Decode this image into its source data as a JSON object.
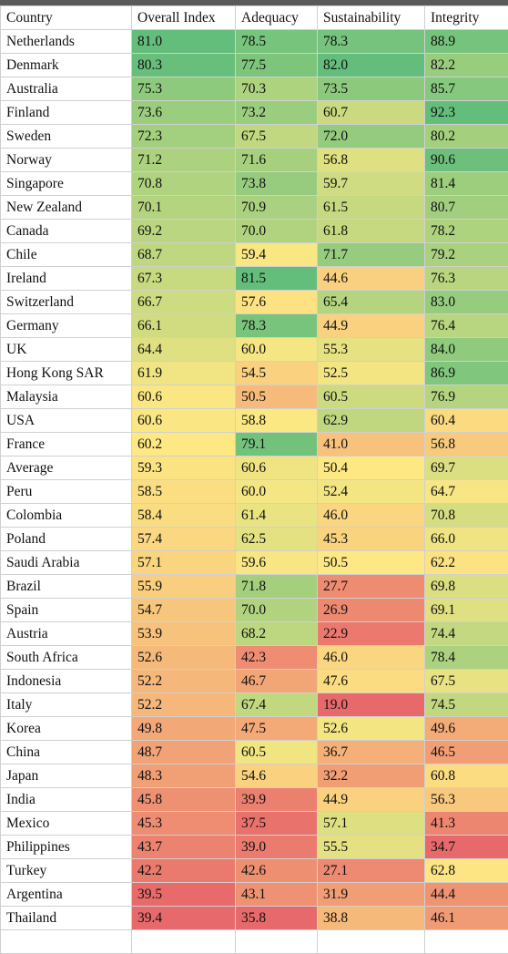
{
  "columns": [
    "Country",
    "Overall Index",
    "Adequacy",
    "Sustainability",
    "Integrity"
  ],
  "color_scale": {
    "low": "#e8696b",
    "mid": "#fde883",
    "high": "#63be7b"
  },
  "rows": [
    {
      "country": "Netherlands",
      "values": [
        81.0,
        78.5,
        78.3,
        88.9
      ]
    },
    {
      "country": "Denmark",
      "values": [
        80.3,
        77.5,
        82.0,
        82.2
      ]
    },
    {
      "country": "Australia",
      "values": [
        75.3,
        70.3,
        73.5,
        85.7
      ]
    },
    {
      "country": "Finland",
      "values": [
        73.6,
        73.2,
        60.7,
        92.3
      ]
    },
    {
      "country": "Sweden",
      "values": [
        72.3,
        67.5,
        72.0,
        80.2
      ]
    },
    {
      "country": "Norway",
      "values": [
        71.2,
        71.6,
        56.8,
        90.6
      ]
    },
    {
      "country": "Singapore",
      "values": [
        70.8,
        73.8,
        59.7,
        81.4
      ]
    },
    {
      "country": "New Zealand",
      "values": [
        70.1,
        70.9,
        61.5,
        80.7
      ]
    },
    {
      "country": "Canada",
      "values": [
        69.2,
        70.0,
        61.8,
        78.2
      ]
    },
    {
      "country": "Chile",
      "values": [
        68.7,
        59.4,
        71.7,
        79.2
      ]
    },
    {
      "country": "Ireland",
      "values": [
        67.3,
        81.5,
        44.6,
        76.3
      ]
    },
    {
      "country": "Switzerland",
      "values": [
        66.7,
        57.6,
        65.4,
        83.0
      ]
    },
    {
      "country": "Germany",
      "values": [
        66.1,
        78.3,
        44.9,
        76.4
      ]
    },
    {
      "country": "UK",
      "values": [
        64.4,
        60.0,
        55.3,
        84.0
      ]
    },
    {
      "country": "Hong Kong SAR",
      "values": [
        61.9,
        54.5,
        52.5,
        86.9
      ]
    },
    {
      "country": "Malaysia",
      "values": [
        60.6,
        50.5,
        60.5,
        76.9
      ]
    },
    {
      "country": "USA",
      "values": [
        60.6,
        58.8,
        62.9,
        60.4
      ]
    },
    {
      "country": "France",
      "values": [
        60.2,
        79.1,
        41.0,
        56.8
      ]
    },
    {
      "country": "Average",
      "values": [
        59.3,
        60.6,
        50.4,
        69.7
      ]
    },
    {
      "country": "Peru",
      "values": [
        58.5,
        60.0,
        52.4,
        64.7
      ]
    },
    {
      "country": "Colombia",
      "values": [
        58.4,
        61.4,
        46.0,
        70.8
      ]
    },
    {
      "country": "Poland",
      "values": [
        57.4,
        62.5,
        45.3,
        66.0
      ]
    },
    {
      "country": "Saudi Arabia",
      "values": [
        57.1,
        59.6,
        50.5,
        62.2
      ]
    },
    {
      "country": "Brazil",
      "values": [
        55.9,
        71.8,
        27.7,
        69.8
      ]
    },
    {
      "country": "Spain",
      "values": [
        54.7,
        70.0,
        26.9,
        69.1
      ]
    },
    {
      "country": "Austria",
      "values": [
        53.9,
        68.2,
        22.9,
        74.4
      ]
    },
    {
      "country": "South Africa",
      "values": [
        52.6,
        42.3,
        46.0,
        78.4
      ]
    },
    {
      "country": "Indonesia",
      "values": [
        52.2,
        46.7,
        47.6,
        67.5
      ]
    },
    {
      "country": "Italy",
      "values": [
        52.2,
        67.4,
        19.0,
        74.5
      ]
    },
    {
      "country": "Korea",
      "values": [
        49.8,
        47.5,
        52.6,
        49.6
      ]
    },
    {
      "country": "China",
      "values": [
        48.7,
        60.5,
        36.7,
        46.5
      ]
    },
    {
      "country": "Japan",
      "values": [
        48.3,
        54.6,
        32.2,
        60.8
      ]
    },
    {
      "country": "India",
      "values": [
        45.8,
        39.9,
        44.9,
        56.3
      ]
    },
    {
      "country": "Mexico",
      "values": [
        45.3,
        37.5,
        57.1,
        41.3
      ]
    },
    {
      "country": "Philippines",
      "values": [
        43.7,
        39.0,
        55.5,
        34.7
      ]
    },
    {
      "country": "Turkey",
      "values": [
        42.2,
        42.6,
        27.1,
        62.8
      ]
    },
    {
      "country": "Argentina",
      "values": [
        39.5,
        43.1,
        31.9,
        44.4
      ]
    },
    {
      "country": "Thailand",
      "values": [
        39.4,
        35.8,
        38.8,
        46.1
      ]
    }
  ]
}
